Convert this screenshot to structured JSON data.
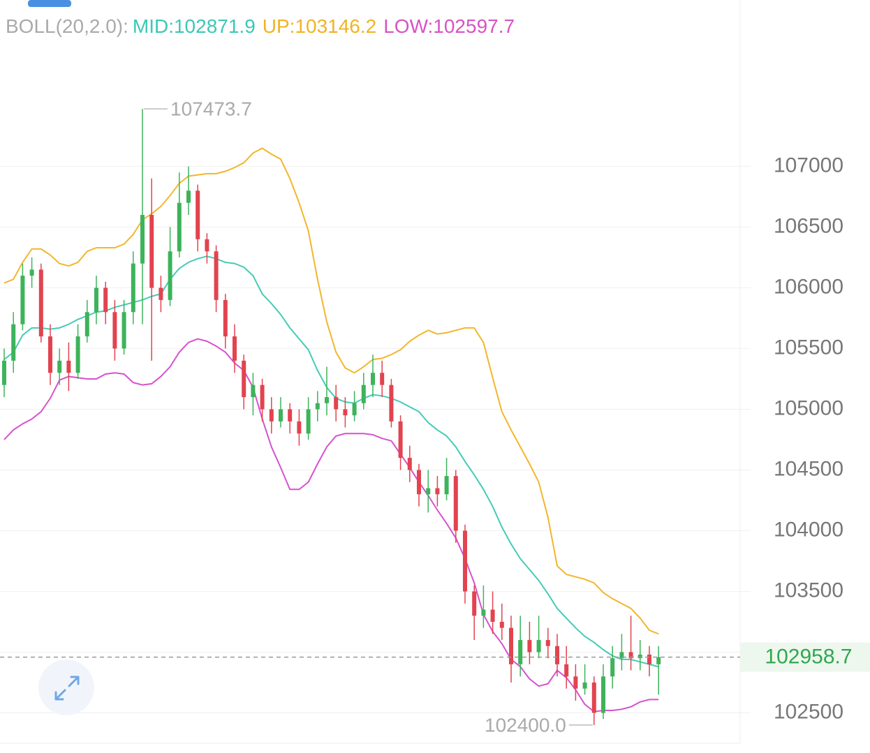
{
  "chart_data": {
    "type": "candlestick",
    "indicator": "BOLL(20,2.0):",
    "legend": [
      {
        "label": "MID:102871.9",
        "color": "#3cc8b4"
      },
      {
        "label": "UP:103146.2",
        "color": "#f0b323"
      },
      {
        "label": "LOW:102597.7",
        "color": "#d752c6"
      }
    ],
    "ylim": [
      102250,
      108370
    ],
    "yticks": [
      102500,
      103000,
      103500,
      104000,
      104500,
      105000,
      105500,
      106000,
      106500,
      107000
    ],
    "grid": true,
    "up_color": "#3db35a",
    "down_color": "#e2434f",
    "last_price": 102958.7,
    "last_price_color": "#2ea84f",
    "max_label": "107473.7",
    "min_label": "102400.0",
    "open": [
      105200,
      105400,
      105700,
      106100,
      106150,
      105600,
      105300,
      105400,
      105300,
      105600,
      105800,
      106000,
      105800,
      105500,
      105800,
      106200,
      106600,
      106000,
      105900,
      106300,
      106700,
      106800,
      106400,
      106300,
      105900,
      105600,
      105400,
      105100,
      105200,
      105000,
      104900,
      105000,
      104900,
      104800,
      105000,
      105050,
      105100,
      105000,
      104950,
      105050,
      105200,
      105300,
      105200,
      104900,
      104600,
      104500,
      104300,
      104350,
      104300,
      104450,
      104000,
      103500,
      103300,
      103350,
      103250,
      103200,
      102900,
      103100,
      103000,
      103100,
      103050,
      102900,
      102800,
      102700,
      102750,
      102500,
      102800,
      102950,
      103000,
      102950,
      102980,
      102900
    ],
    "high": [
      105500,
      105800,
      106200,
      106250,
      106200,
      105700,
      105500,
      105550,
      105700,
      105900,
      106100,
      106050,
      105900,
      105900,
      106300,
      107473.7,
      106900,
      106100,
      106500,
      106950,
      107000,
      106850,
      106450,
      106350,
      105950,
      105700,
      105450,
      105300,
      105250,
      105100,
      105100,
      105050,
      105000,
      105100,
      105150,
      105350,
      105200,
      105100,
      105150,
      105300,
      105450,
      105400,
      105250,
      104950,
      104700,
      104550,
      104500,
      104450,
      104600,
      104500,
      104050,
      103550,
      103550,
      103500,
      103400,
      103300,
      103300,
      103250,
      103300,
      103200,
      103150,
      103050,
      102900,
      102900,
      102800,
      102900,
      103050,
      103150,
      103300,
      103100,
      103050,
      103050
    ],
    "low": [
      105100,
      105300,
      105650,
      106000,
      105550,
      105200,
      105200,
      105150,
      105250,
      105550,
      105700,
      105700,
      105400,
      105450,
      105700,
      105700,
      105400,
      105800,
      105850,
      106250,
      106600,
      106300,
      106200,
      105800,
      105500,
      105300,
      105000,
      104950,
      104900,
      104800,
      104850,
      104800,
      104700,
      104750,
      104900,
      104950,
      104900,
      104850,
      104900,
      105000,
      105100,
      105100,
      104850,
      104500,
      104400,
      104200,
      104150,
      104200,
      104250,
      103900,
      103400,
      103100,
      103200,
      103150,
      103100,
      102750,
      102800,
      102900,
      102950,
      102950,
      102800,
      102700,
      102600,
      102650,
      102400.0,
      102450,
      102700,
      102850,
      102850,
      102850,
      102800,
      102650
    ],
    "close": [
      105400,
      105700,
      106100,
      106150,
      105600,
      105300,
      105400,
      105300,
      105600,
      105800,
      106000,
      105800,
      105500,
      105800,
      106200,
      106600,
      106000,
      105900,
      106300,
      106700,
      106800,
      106400,
      106300,
      105900,
      105600,
      105400,
      105100,
      105200,
      105000,
      104900,
      105000,
      104900,
      104800,
      105000,
      105050,
      105100,
      105000,
      104950,
      105050,
      105200,
      105300,
      105200,
      104900,
      104600,
      104500,
      104300,
      104350,
      104300,
      104450,
      104000,
      103500,
      103300,
      103350,
      103250,
      103200,
      102900,
      103100,
      103000,
      103100,
      103050,
      102900,
      102800,
      102700,
      102750,
      102500,
      102800,
      102950,
      103000,
      102950,
      102980,
      102900,
      102958.7
    ],
    "series": [
      {
        "name": "UP",
        "color": "#f2b62c",
        "values": [
          106040,
          106070,
          106210,
          106320,
          106320,
          106270,
          106200,
          106180,
          106210,
          106300,
          106330,
          106330,
          106330,
          106360,
          106440,
          106560,
          106610,
          106670,
          106760,
          106860,
          106920,
          106930,
          106940,
          106940,
          106960,
          106990,
          107030,
          107110,
          107150,
          107100,
          107060,
          106900,
          106700,
          106470,
          106070,
          105720,
          105470,
          105340,
          105300,
          105350,
          105410,
          105420,
          105450,
          105490,
          105560,
          105610,
          105650,
          105620,
          105630,
          105650,
          105670,
          105670,
          105550,
          105260,
          104980,
          104830,
          104690,
          104550,
          104400,
          104110,
          103710,
          103640,
          103620,
          103600,
          103570,
          103490,
          103440,
          103400,
          103360,
          103280,
          103180,
          103150
        ]
      },
      {
        "name": "MID",
        "color": "#45cbb7",
        "values": [
          105410,
          105470,
          105610,
          105670,
          105670,
          105660,
          105670,
          105700,
          105740,
          105770,
          105800,
          105810,
          105840,
          105860,
          105880,
          105900,
          105930,
          105950,
          106070,
          106160,
          106210,
          106240,
          106260,
          106240,
          106210,
          106200,
          106170,
          106100,
          105950,
          105870,
          105780,
          105670,
          105580,
          105490,
          105320,
          105180,
          105090,
          105060,
          105050,
          105090,
          105120,
          105110,
          105090,
          105060,
          105020,
          104980,
          104890,
          104830,
          104780,
          104690,
          104570,
          104460,
          104340,
          104200,
          104030,
          103890,
          103770,
          103680,
          103590,
          103480,
          103360,
          103280,
          103200,
          103130,
          103080,
          103020,
          102970,
          102940,
          102940,
          102920,
          102900,
          102880
        ]
      },
      {
        "name": "LOW",
        "color": "#d552cf",
        "values": [
          104750,
          104830,
          104880,
          104920,
          104980,
          105090,
          105240,
          105270,
          105260,
          105250,
          105250,
          105290,
          105300,
          105290,
          105220,
          105200,
          105210,
          105270,
          105350,
          105470,
          105550,
          105580,
          105560,
          105520,
          105470,
          105380,
          105320,
          105180,
          104920,
          104690,
          104520,
          104340,
          104340,
          104400,
          104550,
          104690,
          104780,
          104800,
          104800,
          104800,
          104790,
          104760,
          104740,
          104630,
          104520,
          104400,
          104290,
          104170,
          104060,
          103940,
          103770,
          103570,
          103310,
          103170,
          103070,
          102940,
          102880,
          102780,
          102720,
          102740,
          102850,
          102790,
          102690,
          102570,
          102510,
          102520,
          102520,
          102530,
          102550,
          102590,
          102610,
          102610
        ]
      }
    ]
  }
}
